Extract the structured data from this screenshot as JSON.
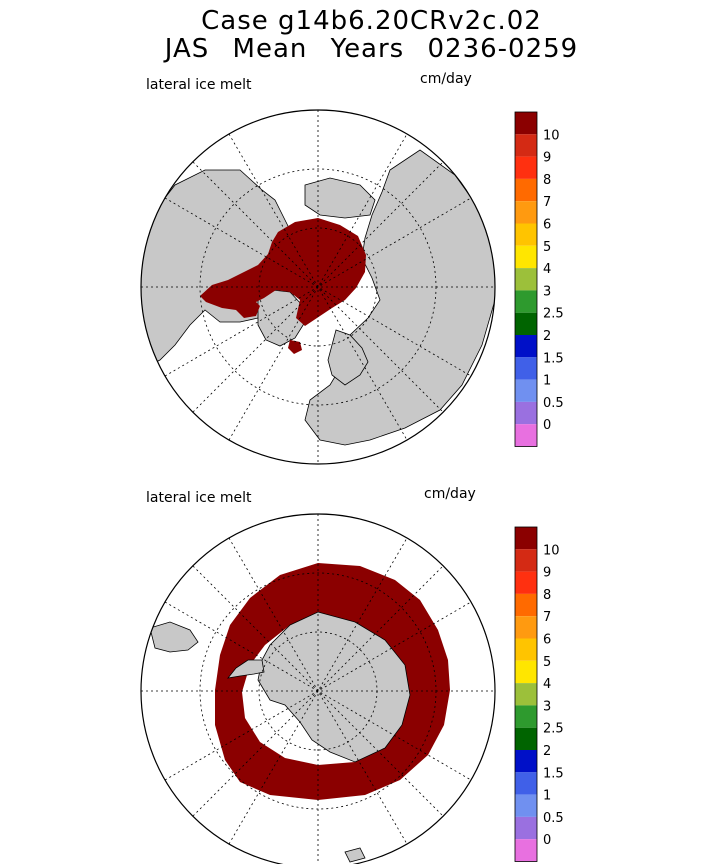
{
  "header": {
    "title_line1": "Case g14b6.20CRv2c.02",
    "title_line2": "JAS Mean   Years 0236-0259"
  },
  "panels": [
    {
      "field_label": "lateral ice melt",
      "units_label": "cm/day",
      "hemisphere": "north"
    },
    {
      "field_label": "lateral ice melt",
      "units_label": "cm/day",
      "hemisphere": "south"
    }
  ],
  "colorbar": {
    "labels": [
      "10",
      "9",
      "8",
      "7",
      "6",
      "5",
      "4",
      "3",
      "2.5",
      "2",
      "1.5",
      "1",
      "0.5",
      "0"
    ],
    "colors": [
      "#8b0000",
      "#d42a14",
      "#ff3010",
      "#ff6a00",
      "#ff9a10",
      "#ffc400",
      "#ffe600",
      "#9cc03a",
      "#2e9a2e",
      "#006400",
      "#0010c8",
      "#4060e8",
      "#7090f0",
      "#9a70e0",
      "#e870e0"
    ],
    "ice_color": "#8b0000",
    "land_color": "#c8c8c8"
  }
}
